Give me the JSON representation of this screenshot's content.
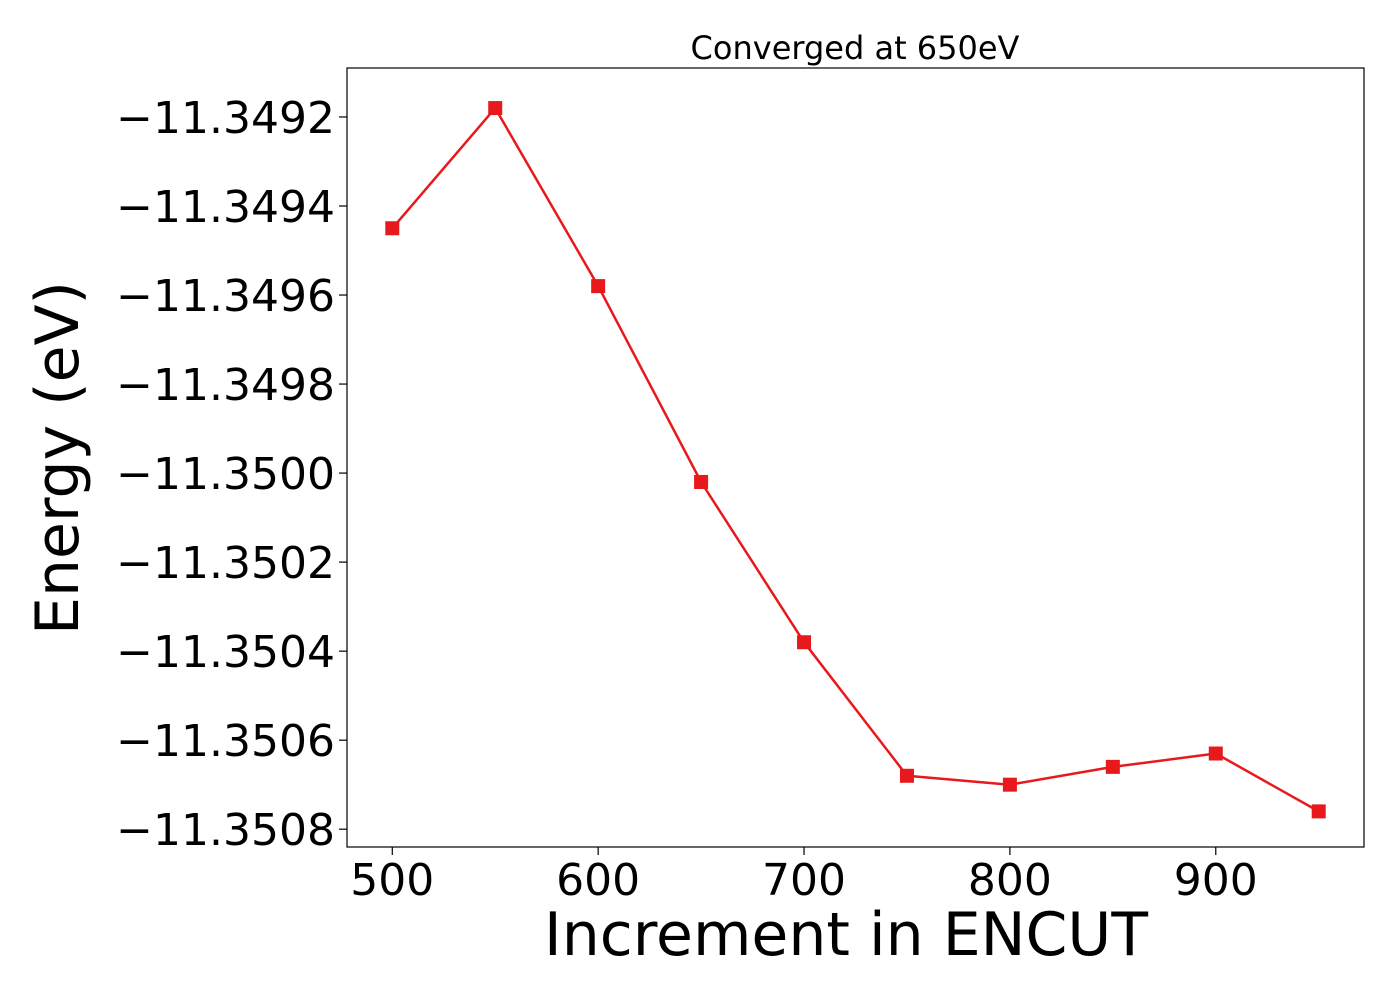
{
  "chart_data": {
    "type": "line",
    "title": "Converged at 650eV",
    "xlabel": "Increment in ENCUT",
    "ylabel": "Energy (eV)",
    "x": [
      500,
      550,
      600,
      650,
      700,
      750,
      800,
      850,
      900,
      950
    ],
    "series": [
      {
        "values": [
          -11.34945,
          -11.34918,
          -11.34958,
          -11.35002,
          -11.35038,
          -11.35068,
          -11.3507,
          -11.35066,
          -11.35063,
          -11.35076
        ],
        "color": "#e8191c",
        "marker": "square"
      }
    ],
    "xlim": [
      478,
      972
    ],
    "ylim": [
      -11.35084,
      -11.34909
    ],
    "xticks": [
      500,
      600,
      700,
      800,
      900
    ],
    "xtick_labels": [
      "500",
      "600",
      "700",
      "800",
      "900"
    ],
    "yticks": [
      -11.3492,
      -11.3494,
      -11.3496,
      -11.3498,
      -11.35,
      -11.3502,
      -11.3504,
      -11.3506,
      -11.3508
    ],
    "ytick_labels": [
      "−11.3492",
      "−11.3494",
      "−11.3496",
      "−11.3498",
      "−11.3500",
      "−11.3502",
      "−11.3504",
      "−11.3506",
      "−11.3508"
    ],
    "grid": false,
    "legend": "none"
  }
}
